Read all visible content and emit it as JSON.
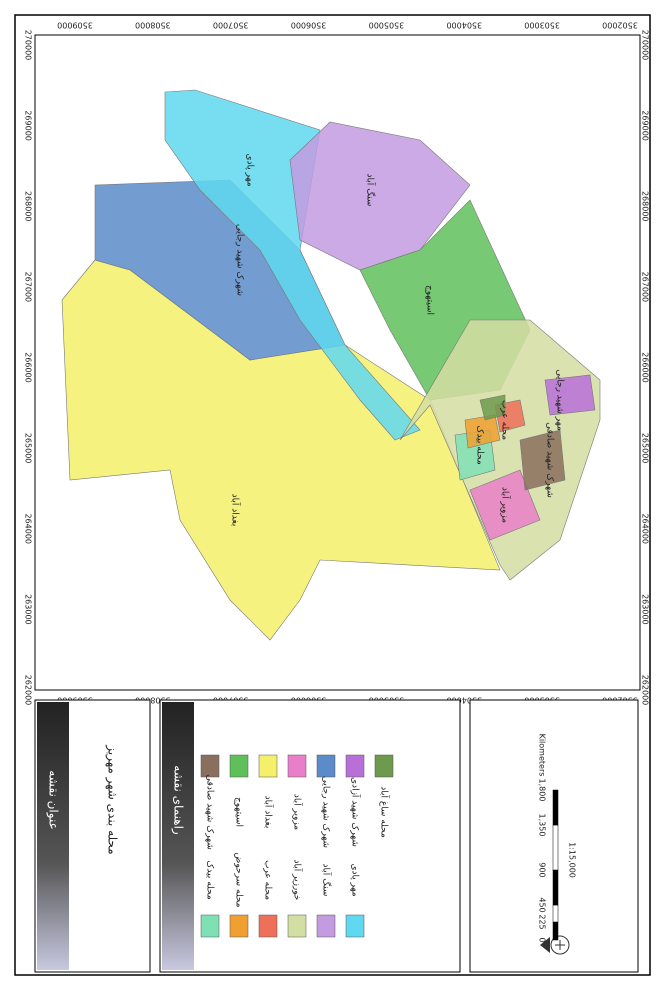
{
  "map": {
    "top_ticks": [
      "3509000",
      "3508000",
      "3507000",
      "3506000",
      "3505000",
      "3504000",
      "3503000",
      "3502000"
    ],
    "side_ticks": [
      "270000",
      "269000",
      "268000",
      "267000",
      "266000",
      "265000",
      "264000",
      "263000",
      "262000"
    ],
    "region_labels": [
      "بغداد آباد",
      "شهرک شهید رجایی",
      "مهر پادی",
      "سنگ آباد",
      "اسیتهوج",
      "مهر شهید رجایی",
      "محله بیدک",
      "مزویر آباد",
      "محله عرب",
      "شهرک شهید صادقی"
    ]
  },
  "title_panel": {
    "heading": "عنوان نقشه",
    "title": "محله بندی شهر مهریز"
  },
  "legend": {
    "heading": "راهنمای نقشه",
    "items": [
      {
        "label": "شهرک شهید صادقی",
        "color": "#8b6f5e"
      },
      {
        "label": "اسیتهوج",
        "color": "#5fbf5a"
      },
      {
        "label": "بغداد آباد",
        "color": "#f5f06a"
      },
      {
        "label": "مزویر آباد",
        "color": "#e97fc9"
      },
      {
        "label": "شهرک شهید رجایی",
        "color": "#5b8bc9"
      },
      {
        "label": "شهرک شهید آزادی",
        "color": "#b96fd8"
      },
      {
        "label": "محله ساغ آباد",
        "color": "#6d9a4d"
      },
      {
        "label": "محله بیدک",
        "color": "#7fe0b6"
      },
      {
        "label": "محله سرحوض",
        "color": "#f0a030"
      },
      {
        "label": "محله عرب",
        "color": "#ee6f5a"
      },
      {
        "label": "خورزیر آباد",
        "color": "#d3dea2"
      },
      {
        "label": "سنگ آباد",
        "color": "#c39be0"
      },
      {
        "label": "مهر پادی",
        "color": "#5fd8f0"
      }
    ]
  },
  "scale": {
    "ticks": [
      "0",
      "225",
      "450",
      "900",
      "1,350",
      "1,800"
    ],
    "unit": "Kilometers",
    "ratio": "1:15,000"
  }
}
